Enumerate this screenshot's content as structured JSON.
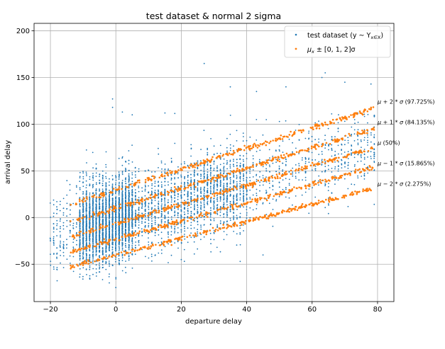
{
  "chart_data": {
    "type": "scatter",
    "title": "test dataset & normal 2 sigma",
    "xlabel": "departure delay",
    "ylabel": "arrival delay",
    "xlim": [
      -25,
      85
    ],
    "ylim": [
      -90,
      208
    ],
    "xticks": [
      -20,
      0,
      20,
      40,
      60,
      80
    ],
    "yticks": [
      -50,
      0,
      50,
      100,
      150,
      200
    ],
    "grid": true,
    "legend_position": "top-right",
    "colors": {
      "test": "#1f77b4",
      "normal": "#ff7f0e"
    },
    "legend": [
      {
        "id": "test",
        "label": "test dataset (y ~ Y",
        "sub": "x∈X",
        "suffix": ")"
      },
      {
        "id": "normal",
        "label": "μ",
        "sub": "x",
        "suffix": " ± [0, 1, 2]σ"
      }
    ],
    "series": [
      {
        "id": "test",
        "name": "test dataset (y ~ Yx∈X)",
        "kind": "scattered cloud",
        "approx_model": {
          "intercept": -3,
          "slope": 0.95,
          "spread_sd": 20,
          "x_range": [
            -20,
            80
          ]
        },
        "outliers": [
          [
            27,
            165
          ],
          [
            -1,
            127
          ],
          [
            -1,
            118
          ],
          [
            2,
            113
          ],
          [
            5,
            110
          ],
          [
            15,
            112
          ],
          [
            35,
            140
          ],
          [
            43,
            135
          ],
          [
            52,
            140
          ],
          [
            63,
            150
          ],
          [
            64,
            155
          ],
          [
            70,
            145
          ],
          [
            78,
            143
          ],
          [
            38,
            -47
          ],
          [
            -2,
            -70
          ],
          [
            0,
            -75
          ],
          [
            -8,
            -65
          ],
          [
            45,
            -40
          ],
          [
            20,
            -45
          ]
        ]
      },
      {
        "id": "normal",
        "name": "μx ± [0, 1, 2]σ",
        "x_range": [
          -14,
          79
        ],
        "bands": [
          {
            "label": "μ + 2 * σ (97.725%)",
            "start": [
              -14,
              14
            ],
            "end": [
              79,
              117
            ]
          },
          {
            "label": "μ + 1 * σ (84.135%)",
            "start": [
              -14,
              -5
            ],
            "end": [
              79,
              95
            ]
          },
          {
            "label": "μ (50%)",
            "start": [
              -14,
              -21
            ],
            "end": [
              79,
              75
            ]
          },
          {
            "label": "μ − 1 * σ (15.865%)",
            "start": [
              -14,
              -37
            ],
            "end": [
              79,
              54
            ]
          },
          {
            "label": "μ − 2 * σ (2.275%)",
            "start": [
              -14,
              -53
            ],
            "end": [
              79,
              31
            ]
          }
        ]
      }
    ],
    "band_annotations": [
      {
        "mu": "μ",
        "op": " + 2",
        "star": " * ",
        "sigma": "σ",
        "pct": " (97.725%)",
        "y": 122
      },
      {
        "mu": "μ",
        "op": " + 1",
        "star": " * ",
        "sigma": "σ",
        "pct": " (84.135%)",
        "y": 100
      },
      {
        "mu": "μ",
        "op": "",
        "star": "",
        "sigma": "",
        "pct": " (50%)",
        "y": 78
      },
      {
        "mu": "μ",
        "op": " − 1",
        "star": " * ",
        "sigma": "σ",
        "pct": " (15.865%)",
        "y": 56
      },
      {
        "mu": "μ",
        "op": " − 2",
        "star": " * ",
        "sigma": "σ",
        "pct": " (2.275%)",
        "y": 34
      }
    ]
  }
}
